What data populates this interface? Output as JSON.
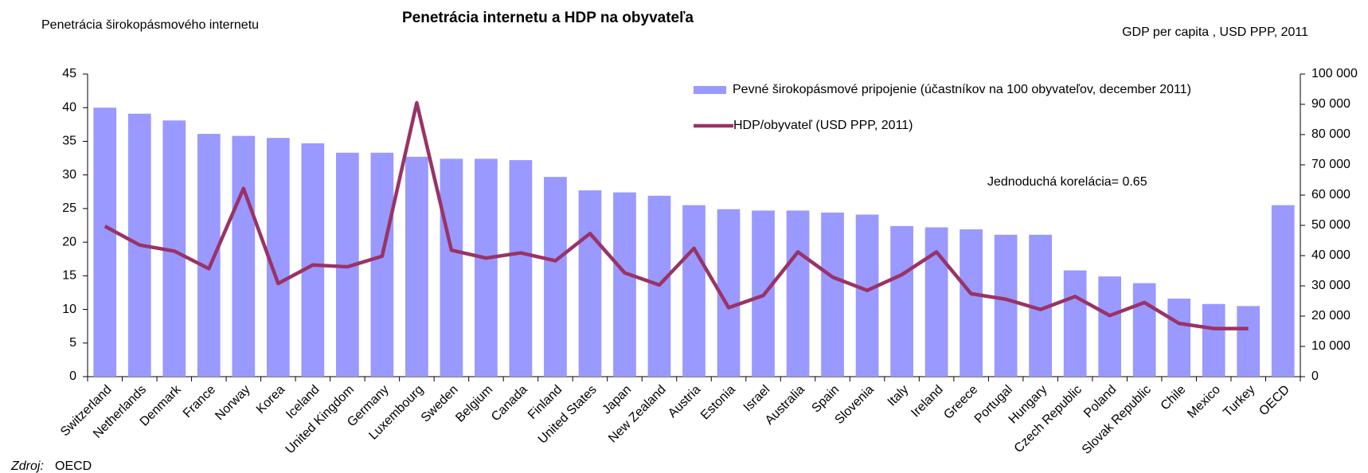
{
  "chart_data": {
    "type": "bar_line",
    "title": "Penetrácia internetu a HDP na obyvateľa",
    "y_label": "Penetrácia širokopásmového internetu",
    "y2_label": "GDP per capita , USD PPP, 2011",
    "annotation": "Jednoduchá korelácia= 0.65",
    "source_label": "Zdroj:",
    "source": "OECD",
    "legend_position": "top-right",
    "categories": [
      "Switzerland",
      "Netherlands",
      "Denmark",
      "France",
      "Norway",
      "Korea",
      "Iceland",
      "United Kingdom",
      "Germany",
      "Luxembourg",
      "Sweden",
      "Belgium",
      "Canada",
      "Finland",
      "United States",
      "Japan",
      "New Zealand",
      "Austria",
      "Estonia",
      "Israel",
      "Australia",
      "Spain",
      "Slovenia",
      "Italy",
      "Ireland",
      "Greece",
      "Portugal",
      "Hungary",
      "Czech Republic",
      "Poland",
      "Slovak Republic",
      "Chile",
      "Mexico",
      "Turkey",
      "OECD"
    ],
    "series": [
      {
        "name": "Pevné širokopásmové pripojenie (účastníkov na 100 obyvateľov, december 2011)",
        "type": "bar",
        "color": "#9999ff",
        "values": [
          40,
          39.1,
          38.1,
          36.1,
          35.8,
          35.5,
          34.7,
          33.3,
          33.3,
          32.7,
          32.4,
          32.4,
          32.2,
          29.7,
          27.7,
          27.4,
          26.9,
          25.5,
          24.9,
          24.7,
          24.7,
          24.4,
          24.1,
          22.4,
          22.2,
          21.9,
          21.1,
          21.1,
          15.8,
          14.9,
          13.9,
          11.6,
          10.8,
          10.5,
          25.5
        ]
      },
      {
        "name": "HDP/obyvateľ (USD PPP, 2011)",
        "type": "line",
        "axis": "y2",
        "color": "#993366",
        "values": [
          49700,
          43500,
          41500,
          35700,
          62200,
          30800,
          36900,
          36300,
          39800,
          90500,
          41800,
          39200,
          40900,
          38300,
          47300,
          34300,
          30300,
          42400,
          22800,
          26800,
          41200,
          32900,
          28500,
          33700,
          41200,
          27400,
          25600,
          22200,
          26500,
          20200,
          24500,
          17600,
          15900,
          15900,
          null
        ]
      }
    ],
    "ylim": [
      0,
      45
    ],
    "yticks": [
      0,
      5,
      10,
      15,
      20,
      25,
      30,
      35,
      40,
      45
    ],
    "y2lim": [
      0,
      100000
    ],
    "y2ticks": [
      0,
      {
        "value": 10000,
        "label": "10 000"
      },
      {
        "value": 20000,
        "label": "20 000"
      },
      {
        "value": 30000,
        "label": "30 000"
      },
      {
        "value": 40000,
        "label": "40 000"
      },
      {
        "value": 50000,
        "label": "50 000"
      },
      {
        "value": 60000,
        "label": "60 000"
      },
      {
        "value": 70000,
        "label": "70 000"
      },
      {
        "value": 80000,
        "label": "80 000"
      },
      {
        "value": 90000,
        "label": "90 000"
      },
      {
        "value": 100000,
        "label": "100 000"
      }
    ]
  }
}
